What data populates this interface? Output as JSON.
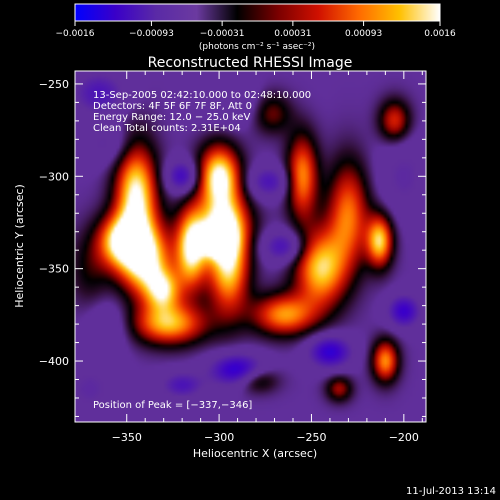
{
  "chart_data": {
    "type": "heatmap",
    "title": "Reconstructed RHESSI Image",
    "xlabel": "Heliocentric X (arcsec)",
    "ylabel": "Heliocentric Y (arcsec)",
    "xlim": [
      -378,
      -188
    ],
    "ylim": [
      -433,
      -243
    ],
    "x_ticks": [
      -350,
      -300,
      -250,
      -200
    ],
    "y_ticks": [
      -250,
      -300,
      -350,
      -400
    ],
    "x_tick_labels": [
      "−350",
      "−300",
      "−250",
      "−200"
    ],
    "y_tick_labels": [
      "−250",
      "−300",
      "−350",
      "−400"
    ],
    "colorbar": {
      "range": [
        -0.0016,
        0.0016
      ],
      "ticks": [
        -0.0016,
        -0.00093,
        -0.00031,
        0.00031,
        0.00093,
        0.0016
      ],
      "tick_labels": [
        "−0.0016",
        "−0.00093",
        "−0.00031",
        "0.00031",
        "0.00093",
        "0.0016"
      ],
      "unit_label": "(photons cm⁻² s⁻¹ asec⁻²)",
      "colors": [
        "#0000ff",
        "#3a00c8",
        "#5a2aa6",
        "#6b3aa0",
        "#000000",
        "#7a0000",
        "#d01000",
        "#ff6a00",
        "#ffc000",
        "#ffffff"
      ]
    },
    "annotations": {
      "time": "13-Sep-2005 02:42:10.000 to 02:48:10.000",
      "detectors": "Detectors: 4F 5F 6F 7F 8F, Att 0",
      "energy": "Energy Range: 12.0 − 25.0 keV",
      "clean": "Clean    Total counts: 2.31E+04",
      "peak": "Position of Peak = [−337,−346]"
    },
    "peak_position": [
      -337,
      -346
    ],
    "blobs": [
      {
        "x": -345,
        "y": -310,
        "sx": 8,
        "sy": 20,
        "a": 0.0016
      },
      {
        "x": -340,
        "y": -345,
        "sx": 10,
        "sy": 14,
        "a": 0.0016
      },
      {
        "x": -355,
        "y": -335,
        "sx": 8,
        "sy": 10,
        "a": 0.0012
      },
      {
        "x": -327,
        "y": -380,
        "sx": 14,
        "sy": 8,
        "a": 0.0013
      },
      {
        "x": -330,
        "y": -362,
        "sx": 7,
        "sy": 8,
        "a": 0.0011
      },
      {
        "x": -300,
        "y": -300,
        "sx": 8,
        "sy": 12,
        "a": 0.0016
      },
      {
        "x": -315,
        "y": -340,
        "sx": 6,
        "sy": 15,
        "a": 0.0015
      },
      {
        "x": -295,
        "y": -345,
        "sx": 8,
        "sy": 20,
        "a": 0.0016
      },
      {
        "x": -302,
        "y": -335,
        "sx": 6,
        "sy": 6,
        "a": 0.001
      },
      {
        "x": -265,
        "y": -375,
        "sx": 12,
        "sy": 8,
        "a": 0.0012
      },
      {
        "x": -272,
        "y": -265,
        "sx": 8,
        "sy": 8,
        "a": 0.0008
      },
      {
        "x": -255,
        "y": -300,
        "sx": 6,
        "sy": 16,
        "a": 0.0012
      },
      {
        "x": -245,
        "y": -350,
        "sx": 10,
        "sy": 15,
        "a": 0.0014
      },
      {
        "x": -230,
        "y": -320,
        "sx": 8,
        "sy": 20,
        "a": 0.0011
      },
      {
        "x": -213,
        "y": -335,
        "sx": 5,
        "sy": 10,
        "a": 0.0014
      },
      {
        "x": -205,
        "y": -270,
        "sx": 6,
        "sy": 8,
        "a": 0.0009
      },
      {
        "x": -210,
        "y": -400,
        "sx": 5,
        "sy": 8,
        "a": 0.0012
      },
      {
        "x": -280,
        "y": -410,
        "sx": 8,
        "sy": 5,
        "a": 0.0007
      },
      {
        "x": -235,
        "y": -415,
        "sx": 5,
        "sy": 5,
        "a": 0.0007
      },
      {
        "x": -370,
        "y": -350,
        "sx": 8,
        "sy": 15,
        "a": 0.0004
      },
      {
        "x": -300,
        "y": -325,
        "sx": 12,
        "sy": 10,
        "a": 0.0008
      },
      {
        "x": -365,
        "y": -255,
        "sx": 10,
        "sy": 8,
        "a": -0.0007
      },
      {
        "x": -320,
        "y": -300,
        "sx": 6,
        "sy": 6,
        "a": -0.0009
      },
      {
        "x": -273,
        "y": -303,
        "sx": 8,
        "sy": 6,
        "a": -0.0007
      },
      {
        "x": -265,
        "y": -338,
        "sx": 8,
        "sy": 6,
        "a": -0.0008
      },
      {
        "x": -290,
        "y": -405,
        "sx": 10,
        "sy": 6,
        "a": -0.0012
      },
      {
        "x": -320,
        "y": -413,
        "sx": 8,
        "sy": 5,
        "a": -0.0007
      },
      {
        "x": -240,
        "y": -395,
        "sx": 8,
        "sy": 6,
        "a": -0.0011
      },
      {
        "x": -200,
        "y": -373,
        "sx": 6,
        "sy": 6,
        "a": -0.001
      },
      {
        "x": -360,
        "y": -382,
        "sx": 8,
        "sy": 10,
        "a": -0.0004
      },
      {
        "x": -285,
        "y": -262,
        "sx": 15,
        "sy": 8,
        "a": -0.0004
      },
      {
        "x": -200,
        "y": -300,
        "sx": 10,
        "sy": 15,
        "a": -0.0004
      },
      {
        "x": -370,
        "y": -415,
        "sx": 10,
        "sy": 10,
        "a": -0.0004
      },
      {
        "x": -360,
        "y": -283,
        "sx": 10,
        "sy": 8,
        "a": -0.0004
      }
    ]
  },
  "footer": {
    "date": "11-Jul-2013 13:14"
  }
}
